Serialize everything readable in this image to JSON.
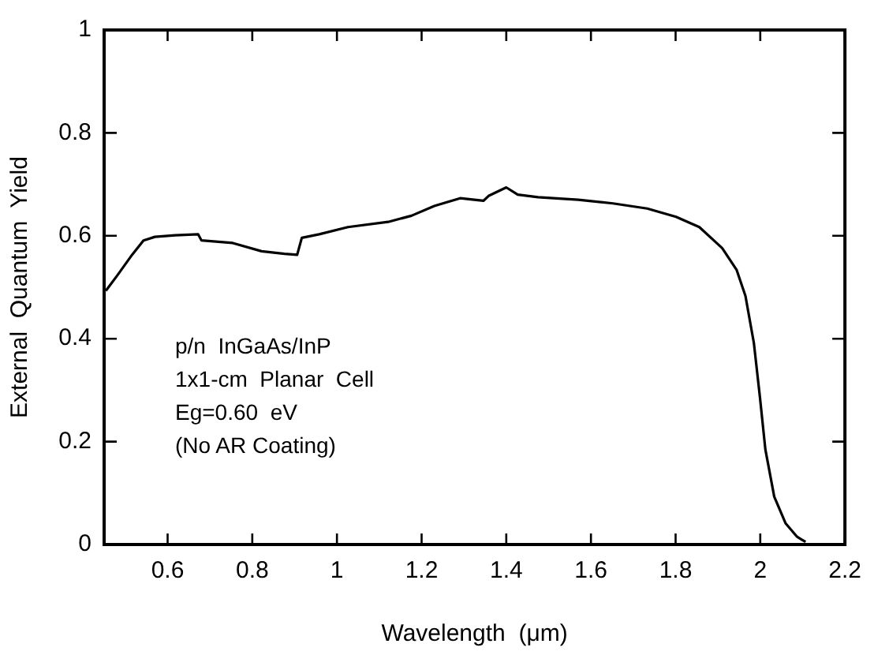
{
  "chart_data": {
    "type": "line",
    "xlabel": "Wavelength  (μm)",
    "ylabel": "External  Quantum  Yield",
    "annotations": [
      "p/n  InGaAs/InP",
      "1x1-cm  Planar  Cell",
      "Eg=0.60  eV",
      "(No AR Coating)"
    ],
    "x": [
      0.454,
      0.482,
      0.516,
      0.543,
      0.57,
      0.618,
      0.672,
      0.68,
      0.754,
      0.822,
      0.876,
      0.906,
      0.917,
      0.958,
      1.026,
      1.121,
      1.176,
      1.23,
      1.291,
      1.346,
      1.359,
      1.4,
      1.427,
      1.475,
      1.57,
      1.652,
      1.733,
      1.801,
      1.856,
      1.91,
      1.944,
      1.965,
      1.985,
      1.999,
      2.012,
      2.033,
      2.06,
      2.087,
      2.107
    ],
    "series": [
      {
        "color": "#000000",
        "values": [
          0.493,
          0.524,
          0.563,
          0.591,
          0.598,
          0.601,
          0.603,
          0.591,
          0.586,
          0.57,
          0.565,
          0.563,
          0.596,
          0.603,
          0.617,
          0.627,
          0.639,
          0.658,
          0.673,
          0.668,
          0.678,
          0.694,
          0.68,
          0.675,
          0.67,
          0.663,
          0.653,
          0.637,
          0.617,
          0.576,
          0.534,
          0.483,
          0.391,
          0.288,
          0.185,
          0.093,
          0.041,
          0.015,
          0.005
        ]
      }
    ],
    "xlim": [
      0.45,
      2.2
    ],
    "xticks": [
      0.6,
      0.8,
      1,
      1.2,
      1.4,
      1.6,
      1.8,
      2,
      2.2
    ],
    "ylim": [
      0,
      1
    ],
    "yticks": [
      0,
      0.2,
      0.4,
      0.6,
      0.8,
      1
    ],
    "grid": false,
    "legend": false,
    "marker": "none",
    "line_style": "solid"
  }
}
